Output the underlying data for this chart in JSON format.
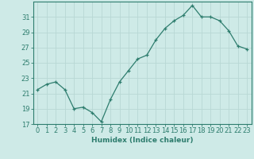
{
  "x": [
    0,
    1,
    2,
    3,
    4,
    5,
    6,
    7,
    8,
    9,
    10,
    11,
    12,
    13,
    14,
    15,
    16,
    17,
    18,
    19,
    20,
    21,
    22,
    23
  ],
  "y": [
    21.5,
    22.2,
    22.5,
    21.5,
    19.0,
    19.2,
    18.5,
    17.3,
    20.2,
    22.5,
    24.0,
    25.5,
    26.0,
    28.0,
    29.5,
    30.5,
    31.2,
    32.5,
    31.0,
    31.0,
    30.5,
    29.2,
    27.2,
    26.8
  ],
  "xlabel": "Humidex (Indice chaleur)",
  "ylabel": "",
  "xlim": [
    -0.5,
    23.5
  ],
  "ylim": [
    17,
    33
  ],
  "yticks": [
    17,
    19,
    21,
    23,
    25,
    27,
    29,
    31
  ],
  "xticks": [
    0,
    1,
    2,
    3,
    4,
    5,
    6,
    7,
    8,
    9,
    10,
    11,
    12,
    13,
    14,
    15,
    16,
    17,
    18,
    19,
    20,
    21,
    22,
    23
  ],
  "xtick_labels": [
    "0",
    "1",
    "2",
    "3",
    "4",
    "5",
    "6",
    "7",
    "8",
    "9",
    "10",
    "11",
    "12",
    "13",
    "14",
    "15",
    "16",
    "17",
    "18",
    "19",
    "20",
    "21",
    "22",
    "23"
  ],
  "line_color": "#2e7d6e",
  "marker": "+",
  "bg_color": "#ceeae7",
  "grid_color": "#b8d8d4",
  "axis_fontsize": 6.5,
  "tick_fontsize": 6.0
}
